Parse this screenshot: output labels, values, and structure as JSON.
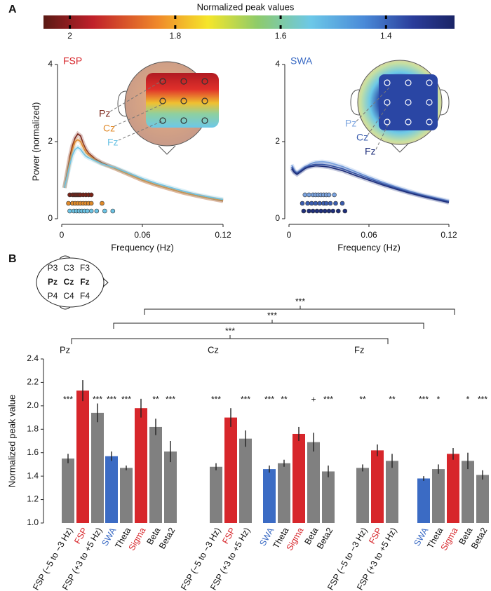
{
  "panels": [
    "A",
    "B"
  ],
  "colorbar": {
    "title": "Normalized peak values",
    "lim": [
      2.05,
      1.27
    ],
    "ticks": [
      2,
      1.8,
      1.6,
      1.4
    ]
  },
  "head_electrodes": [
    [
      "P3",
      "C3",
      "F3"
    ],
    [
      "Pz",
      "Cz",
      "Fz"
    ],
    [
      "P4",
      "C4",
      "F4"
    ]
  ],
  "chart_data": [
    {
      "type": "line",
      "title": "FSP",
      "title_color": "#d7262b",
      "ylabel": "Power (normalized)",
      "xlabel": "Frequency (Hz)",
      "xlim": [
        0,
        0.12
      ],
      "xticks": [
        0,
        0.06,
        0.12
      ],
      "ylim": [
        0,
        4
      ],
      "yticks": [
        0,
        2,
        4
      ],
      "x": [
        0.002,
        0.004,
        0.006,
        0.008,
        0.01,
        0.012,
        0.014,
        0.016,
        0.018,
        0.02,
        0.025,
        0.03,
        0.04,
        0.05,
        0.06,
        0.07,
        0.08,
        0.09,
        0.1,
        0.11,
        0.12
      ],
      "series": [
        {
          "name": "Pz",
          "color": "#7a2418",
          "values": [
            0.8,
            1.2,
            1.6,
            1.9,
            2.1,
            2.2,
            2.15,
            1.95,
            1.8,
            1.7,
            1.55,
            1.45,
            1.3,
            1.15,
            1.0,
            0.88,
            0.78,
            0.68,
            0.6,
            0.53,
            0.46
          ],
          "peaks": [
            0.006,
            0.008,
            0.009,
            0.01,
            0.011,
            0.012,
            0.013,
            0.014,
            0.016,
            0.018,
            0.02,
            0.022
          ]
        },
        {
          "name": "Cz",
          "color": "#e08a2a",
          "values": [
            0.8,
            1.15,
            1.5,
            1.8,
            2.0,
            2.05,
            2.0,
            1.85,
            1.72,
            1.65,
            1.52,
            1.43,
            1.3,
            1.15,
            1.0,
            0.88,
            0.78,
            0.68,
            0.6,
            0.53,
            0.47
          ],
          "peaks": [
            0.005,
            0.008,
            0.01,
            0.012,
            0.014,
            0.016,
            0.018,
            0.02,
            0.022,
            0.03
          ]
        },
        {
          "name": "Fz",
          "color": "#6cc3e4",
          "values": [
            0.8,
            1.1,
            1.4,
            1.65,
            1.8,
            1.85,
            1.8,
            1.7,
            1.62,
            1.58,
            1.5,
            1.42,
            1.32,
            1.18,
            1.04,
            0.92,
            0.82,
            0.72,
            0.63,
            0.56,
            0.5
          ],
          "peaks": [
            0.006,
            0.009,
            0.011,
            0.013,
            0.015,
            0.017,
            0.019,
            0.022,
            0.026,
            0.032,
            0.038
          ]
        }
      ]
    },
    {
      "type": "line",
      "title": "SWA",
      "title_color": "#3b6bc4",
      "xlabel": "Frequency (Hz)",
      "xlim": [
        0,
        0.12
      ],
      "xticks": [
        0,
        0.06,
        0.12
      ],
      "ylim": [
        0,
        4
      ],
      "yticks": [
        0,
        2,
        4
      ],
      "x": [
        0.002,
        0.004,
        0.006,
        0.008,
        0.01,
        0.012,
        0.014,
        0.016,
        0.018,
        0.02,
        0.025,
        0.03,
        0.04,
        0.05,
        0.06,
        0.07,
        0.08,
        0.09,
        0.1,
        0.11,
        0.12
      ],
      "series": [
        {
          "name": "Pz",
          "color": "#7aa3df",
          "values": [
            1.4,
            1.25,
            1.2,
            1.24,
            1.3,
            1.35,
            1.38,
            1.42,
            1.45,
            1.47,
            1.48,
            1.46,
            1.36,
            1.22,
            1.08,
            0.95,
            0.83,
            0.72,
            0.62,
            0.54,
            0.46
          ],
          "peaks": [
            0.012,
            0.015,
            0.018,
            0.02,
            0.022,
            0.024,
            0.026,
            0.028,
            0.03,
            0.034
          ]
        },
        {
          "name": "Cz",
          "color": "#3a5cae",
          "values": [
            1.35,
            1.22,
            1.18,
            1.22,
            1.27,
            1.32,
            1.35,
            1.38,
            1.4,
            1.41,
            1.41,
            1.39,
            1.3,
            1.17,
            1.04,
            0.91,
            0.8,
            0.69,
            0.6,
            0.52,
            0.44
          ],
          "peaks": [
            0.01,
            0.014,
            0.017,
            0.02,
            0.023,
            0.026,
            0.028,
            0.031,
            0.035,
            0.04
          ]
        },
        {
          "name": "Fz",
          "color": "#1f2f7a",
          "values": [
            1.3,
            1.2,
            1.15,
            1.2,
            1.25,
            1.3,
            1.33,
            1.35,
            1.36,
            1.37,
            1.36,
            1.34,
            1.25,
            1.12,
            1.0,
            0.88,
            0.77,
            0.67,
            0.58,
            0.5,
            0.42
          ],
          "peaks": [
            0.011,
            0.015,
            0.018,
            0.021,
            0.024,
            0.027,
            0.03,
            0.033,
            0.037,
            0.042
          ]
        }
      ]
    },
    {
      "type": "bar",
      "ylabel": "Normalized peak value",
      "ylim": [
        1.0,
        2.4
      ],
      "yticks": [
        {
          "value": 1.0,
          "label": "1.0"
        },
        {
          "value": 1.2,
          "label": "1.2"
        },
        {
          "value": 1.4,
          "label": "1.4"
        },
        {
          "value": 1.6,
          "label": "1.6"
        },
        {
          "value": 1.8,
          "label": "1.8"
        },
        {
          "value": 2.0,
          "label": "2.0"
        },
        {
          "value": 2.2,
          "label": "2.2"
        },
        {
          "value": 2.4,
          "label": "2.4"
        }
      ],
      "brackets": [
        "***",
        "***",
        "***"
      ],
      "groups": [
        {
          "name": "Pz",
          "categories": [
            "FSP (−5 to −3 Hz)",
            "FSP",
            "FSP (+3 to +5 Hz)",
            "SWA",
            "Theta",
            "Sigma",
            "Beta",
            "Beta2"
          ],
          "colors": [
            "#808080",
            "#d7262b",
            "#808080",
            "#3b6bc4",
            "#808080",
            "#d7262b",
            "#808080",
            "#808080"
          ],
          "values": [
            1.55,
            2.13,
            1.94,
            1.57,
            1.47,
            1.98,
            1.82,
            1.61
          ],
          "errors": [
            0.04,
            0.09,
            0.08,
            0.04,
            0.02,
            0.08,
            0.07,
            0.09
          ],
          "significance": [
            "***",
            null,
            "***",
            "***",
            "***",
            null,
            "**",
            "***"
          ]
        },
        {
          "name": "Cz",
          "categories": [
            "FSP (−5 to −3 Hz)",
            "FSP",
            "FSP (+3 to +5 Hz)",
            "SWA",
            "Theta",
            "Sigma",
            "Beta",
            "Beta2"
          ],
          "colors": [
            "#808080",
            "#d7262b",
            "#808080",
            "#3b6bc4",
            "#808080",
            "#d7262b",
            "#808080",
            "#808080"
          ],
          "values": [
            1.48,
            1.9,
            1.72,
            1.46,
            1.51,
            1.76,
            1.69,
            1.44
          ],
          "errors": [
            0.03,
            0.08,
            0.07,
            0.03,
            0.03,
            0.06,
            0.08,
            0.05
          ],
          "significance": [
            "***",
            null,
            "***",
            "***",
            "**",
            null,
            "+",
            "***"
          ]
        },
        {
          "name": "Fz",
          "categories": [
            "FSP (−5 to −3 Hz)",
            "FSP",
            "FSP (+3 to +5 Hz)",
            "SWA",
            "Theta",
            "Sigma",
            "Beta",
            "Beta2"
          ],
          "colors": [
            "#808080",
            "#d7262b",
            "#808080",
            "#3b6bc4",
            "#808080",
            "#d7262b",
            "#808080",
            "#808080"
          ],
          "values": [
            1.47,
            1.62,
            1.53,
            1.38,
            1.46,
            1.59,
            1.53,
            1.41
          ],
          "errors": [
            0.03,
            0.05,
            0.06,
            0.02,
            0.04,
            0.05,
            0.07,
            0.04
          ],
          "significance": [
            "**",
            null,
            "**",
            "***",
            "*",
            null,
            "*",
            "***"
          ]
        }
      ]
    }
  ]
}
